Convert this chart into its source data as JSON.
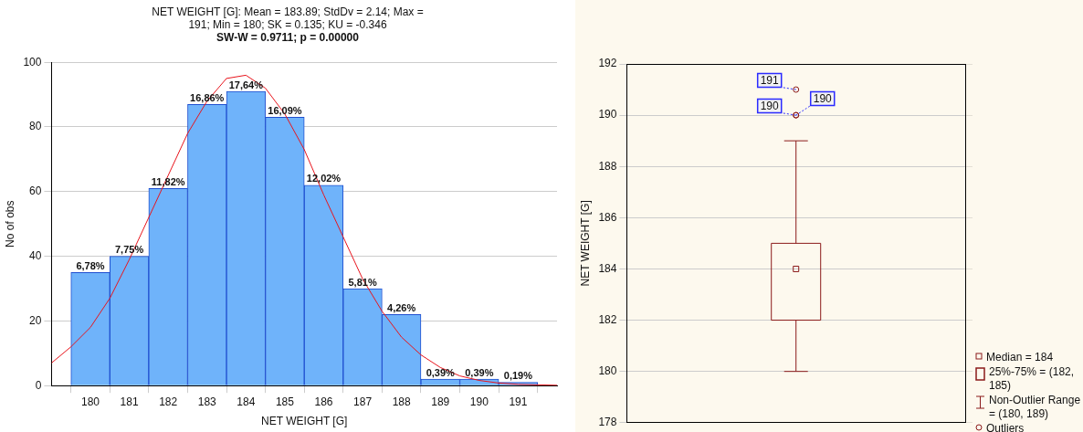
{
  "chart_data": [
    {
      "type": "histogram",
      "title": "NET WEIGHT [G]: Mean = 183.89; StdDv = 2.14; Max = 191; Min = 180; SK = 0.135; KU = -0.346",
      "subtitle": "SW-W = 0.9711; p = 0.00000",
      "xlabel": "NET WEIGHT [G]",
      "ylabel": "No of obs",
      "bins": [
        179.5,
        180.5,
        181.5,
        182.5,
        183.5,
        184.5,
        185.5,
        186.5,
        187.5,
        188.5,
        189.5,
        190.5,
        191.5
      ],
      "values": [
        35,
        40,
        61,
        87,
        91,
        83,
        62,
        30,
        22,
        2,
        2,
        1
      ],
      "annotations": [
        {
          "text": "6,78%",
          "x": 180,
          "y": 35
        },
        {
          "text": "7,75%",
          "x": 181,
          "y": 40
        },
        {
          "text": "11,82%",
          "x": 182,
          "y": 61
        },
        {
          "text": "16,86%",
          "x": 183,
          "y": 87
        },
        {
          "text": "17,64%",
          "x": 184,
          "y": 91
        },
        {
          "text": "16,09%",
          "x": 185,
          "y": 83
        },
        {
          "text": "12,02%",
          "x": 186,
          "y": 62
        },
        {
          "text": "5,81%",
          "x": 187,
          "y": 30
        },
        {
          "text": "4,26%",
          "x": 188,
          "y": 22
        },
        {
          "text": "0,39%",
          "x": 189,
          "y": 2
        },
        {
          "text": "0,39%",
          "x": 190,
          "y": 2
        },
        {
          "text": "0,19%",
          "x": 191,
          "y": 1
        }
      ],
      "color": "#6fb3fa",
      "series": [
        {
          "type": "line",
          "color": "#e8141c",
          "x": [
            179,
            179.5,
            180,
            180.5,
            181,
            181.5,
            182,
            182.5,
            183,
            183.5,
            184,
            184.5,
            185,
            185.5,
            186,
            186.5,
            187,
            187.5,
            188,
            188.5,
            189,
            189.5,
            190,
            190.5,
            191,
            192
          ],
          "values": [
            7,
            12,
            18,
            27,
            39,
            52,
            65,
            78,
            88,
            95,
            96,
            92,
            84,
            73,
            59,
            46,
            33,
            23,
            15,
            9.5,
            5.6,
            3,
            1.6,
            0.8,
            0.4,
            0.1
          ]
        }
      ],
      "xlim": [
        179,
        192
      ],
      "xticks": [
        180,
        181,
        182,
        183,
        184,
        185,
        186,
        187,
        188,
        189,
        190,
        191
      ],
      "ylim": [
        0,
        100
      ],
      "yticks": [
        0,
        20,
        40,
        60,
        80,
        100
      ],
      "grid": "y"
    },
    {
      "type": "box",
      "ylabel": "NET WEIGHT [G]",
      "categories": [
        null
      ],
      "color": "#8b1a1a",
      "boxes": [
        {
          "low": 180,
          "q1": 182,
          "median": 184,
          "q3": 185,
          "high": 189,
          "outliers": [
            191,
            190,
            190
          ]
        }
      ],
      "ylim": [
        178,
        192
      ],
      "yticks": [
        178,
        180,
        182,
        184,
        186,
        188,
        190,
        192
      ],
      "grid": "y",
      "annotations": [
        "191",
        "190",
        "190",
        "Median = 184",
        "25%-75% = (182, 185)",
        "Non-Outlier Range = (180, 189)",
        "Outliers"
      ]
    }
  ]
}
